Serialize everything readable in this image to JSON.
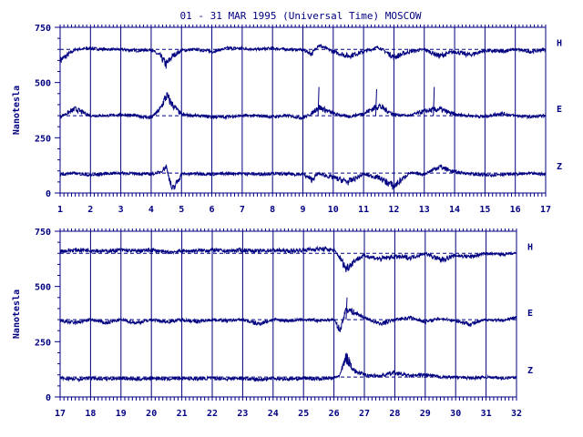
{
  "title": "01 - 31 MAR 1995 (Universal Time) MOSCOW",
  "ylabel": "Nanotesla",
  "colors": {
    "ink": "#000080",
    "background": "#ffffff"
  },
  "chart_data": [
    {
      "type": "line",
      "panel": "top",
      "x_range": [
        1,
        17
      ],
      "x_ticks": [
        "1",
        "2",
        "3",
        "4",
        "5",
        "6",
        "7",
        "8",
        "9",
        "10",
        "11",
        "12",
        "13",
        "14",
        "15",
        "16",
        "17"
      ],
      "ylim": [
        0,
        750
      ],
      "y_ticks": [
        0,
        250,
        500,
        750
      ],
      "ylabel": "Nanotesla",
      "grid": "vertical lines at each day",
      "series": [
        {
          "name": "H",
          "baseline": 650,
          "x": [
            1,
            1.5,
            2,
            2.5,
            3,
            3.5,
            4,
            4.3,
            4.5,
            4.7,
            5,
            5.5,
            6,
            6.5,
            7,
            7.5,
            8,
            8.5,
            9,
            9.3,
            9.5,
            10,
            10.5,
            11,
            11.5,
            12,
            12.5,
            13,
            13.5,
            14,
            14.5,
            15,
            15.5,
            16,
            16.5,
            17
          ],
          "values": [
            600,
            650,
            655,
            650,
            650,
            645,
            648,
            620,
            580,
            620,
            645,
            650,
            640,
            655,
            655,
            650,
            655,
            650,
            648,
            630,
            670,
            640,
            620,
            640,
            660,
            615,
            640,
            650,
            620,
            640,
            625,
            645,
            640,
            650,
            640,
            650
          ]
        },
        {
          "name": "E",
          "baseline": 350,
          "x": [
            1,
            1.5,
            2,
            2.5,
            3,
            3.5,
            4,
            4.3,
            4.5,
            4.7,
            5,
            5.5,
            6,
            6.5,
            7,
            7.5,
            8,
            8.5,
            9,
            9.3,
            9.5,
            10,
            10.5,
            11,
            11.5,
            12,
            12.5,
            13,
            13.5,
            14,
            14.5,
            15,
            15.5,
            16,
            16.5,
            17
          ],
          "values": [
            345,
            380,
            350,
            350,
            355,
            350,
            340,
            380,
            440,
            400,
            355,
            350,
            345,
            345,
            350,
            350,
            345,
            350,
            340,
            360,
            390,
            360,
            345,
            360,
            395,
            355,
            350,
            370,
            380,
            355,
            350,
            345,
            360,
            350,
            345,
            350
          ],
          "spikes": [
            [
              9.5,
              480
            ],
            [
              11.4,
              470
            ],
            [
              13.3,
              480
            ]
          ]
        },
        {
          "name": "Z",
          "baseline": 90,
          "x": [
            1,
            1.5,
            2,
            2.5,
            3,
            3.5,
            4,
            4.3,
            4.5,
            4.7,
            5,
            5.5,
            6,
            6.5,
            7,
            7.5,
            8,
            8.5,
            9,
            9.3,
            9.5,
            10,
            10.5,
            11,
            11.5,
            12,
            12.5,
            13,
            13.5,
            14,
            14.5,
            15,
            15.5,
            16,
            16.5,
            17
          ],
          "values": [
            85,
            90,
            80,
            88,
            90,
            88,
            85,
            95,
            120,
            10,
            85,
            88,
            85,
            88,
            88,
            85,
            88,
            85,
            85,
            60,
            88,
            70,
            50,
            85,
            70,
            30,
            90,
            85,
            120,
            95,
            88,
            80,
            85,
            85,
            88,
            85
          ]
        }
      ]
    },
    {
      "type": "line",
      "panel": "bottom",
      "x_range": [
        17,
        32
      ],
      "x_ticks": [
        "17",
        "18",
        "19",
        "20",
        "21",
        "22",
        "23",
        "24",
        "25",
        "26",
        "27",
        "28",
        "29",
        "30",
        "31",
        "32"
      ],
      "ylim": [
        0,
        750
      ],
      "y_ticks": [
        0,
        250,
        500,
        750
      ],
      "ylabel": "Nanotesla",
      "grid": "vertical lines at each day",
      "series": [
        {
          "name": "H",
          "baseline": 650,
          "x": [
            17,
            17.5,
            18,
            18.5,
            19,
            19.5,
            20,
            20.5,
            21,
            21.5,
            22,
            22.5,
            23,
            23.5,
            24,
            24.5,
            25,
            25.5,
            26,
            26.2,
            26.4,
            26.7,
            27,
            27.5,
            28,
            28.5,
            29,
            29.5,
            30,
            30.5,
            31,
            31.5,
            32
          ],
          "values": [
            660,
            665,
            665,
            660,
            665,
            660,
            665,
            655,
            660,
            662,
            665,
            660,
            665,
            660,
            665,
            660,
            665,
            670,
            665,
            630,
            580,
            620,
            640,
            625,
            635,
            630,
            650,
            620,
            640,
            635,
            650,
            645,
            650
          ]
        },
        {
          "name": "E",
          "baseline": 350,
          "x": [
            17,
            17.5,
            18,
            18.5,
            19,
            19.5,
            20,
            20.5,
            21,
            21.5,
            22,
            22.5,
            23,
            23.5,
            24,
            24.5,
            25,
            25.5,
            26,
            26.2,
            26.4,
            26.7,
            27,
            27.5,
            28,
            28.5,
            29,
            29.5,
            30,
            30.5,
            31,
            31.5,
            32
          ],
          "values": [
            345,
            335,
            350,
            335,
            350,
            335,
            350,
            340,
            350,
            340,
            350,
            345,
            350,
            330,
            350,
            345,
            350,
            345,
            350,
            300,
            400,
            380,
            360,
            330,
            350,
            360,
            340,
            355,
            345,
            330,
            350,
            345,
            360
          ],
          "spikes": [
            [
              26.4,
              450
            ]
          ]
        },
        {
          "name": "Z",
          "baseline": 90,
          "x": [
            17,
            17.5,
            18,
            18.5,
            19,
            19.5,
            20,
            20.5,
            21,
            21.5,
            22,
            22.5,
            23,
            23.5,
            24,
            24.5,
            25,
            25.5,
            26,
            26.2,
            26.4,
            26.7,
            27,
            27.5,
            28,
            28.5,
            29,
            29.5,
            30,
            30.5,
            31,
            31.5,
            32
          ],
          "values": [
            85,
            80,
            85,
            82,
            85,
            80,
            85,
            82,
            85,
            82,
            85,
            82,
            85,
            78,
            85,
            80,
            85,
            82,
            85,
            100,
            180,
            115,
            100,
            95,
            110,
            95,
            100,
            90,
            90,
            85,
            90,
            85,
            88
          ]
        }
      ]
    }
  ]
}
